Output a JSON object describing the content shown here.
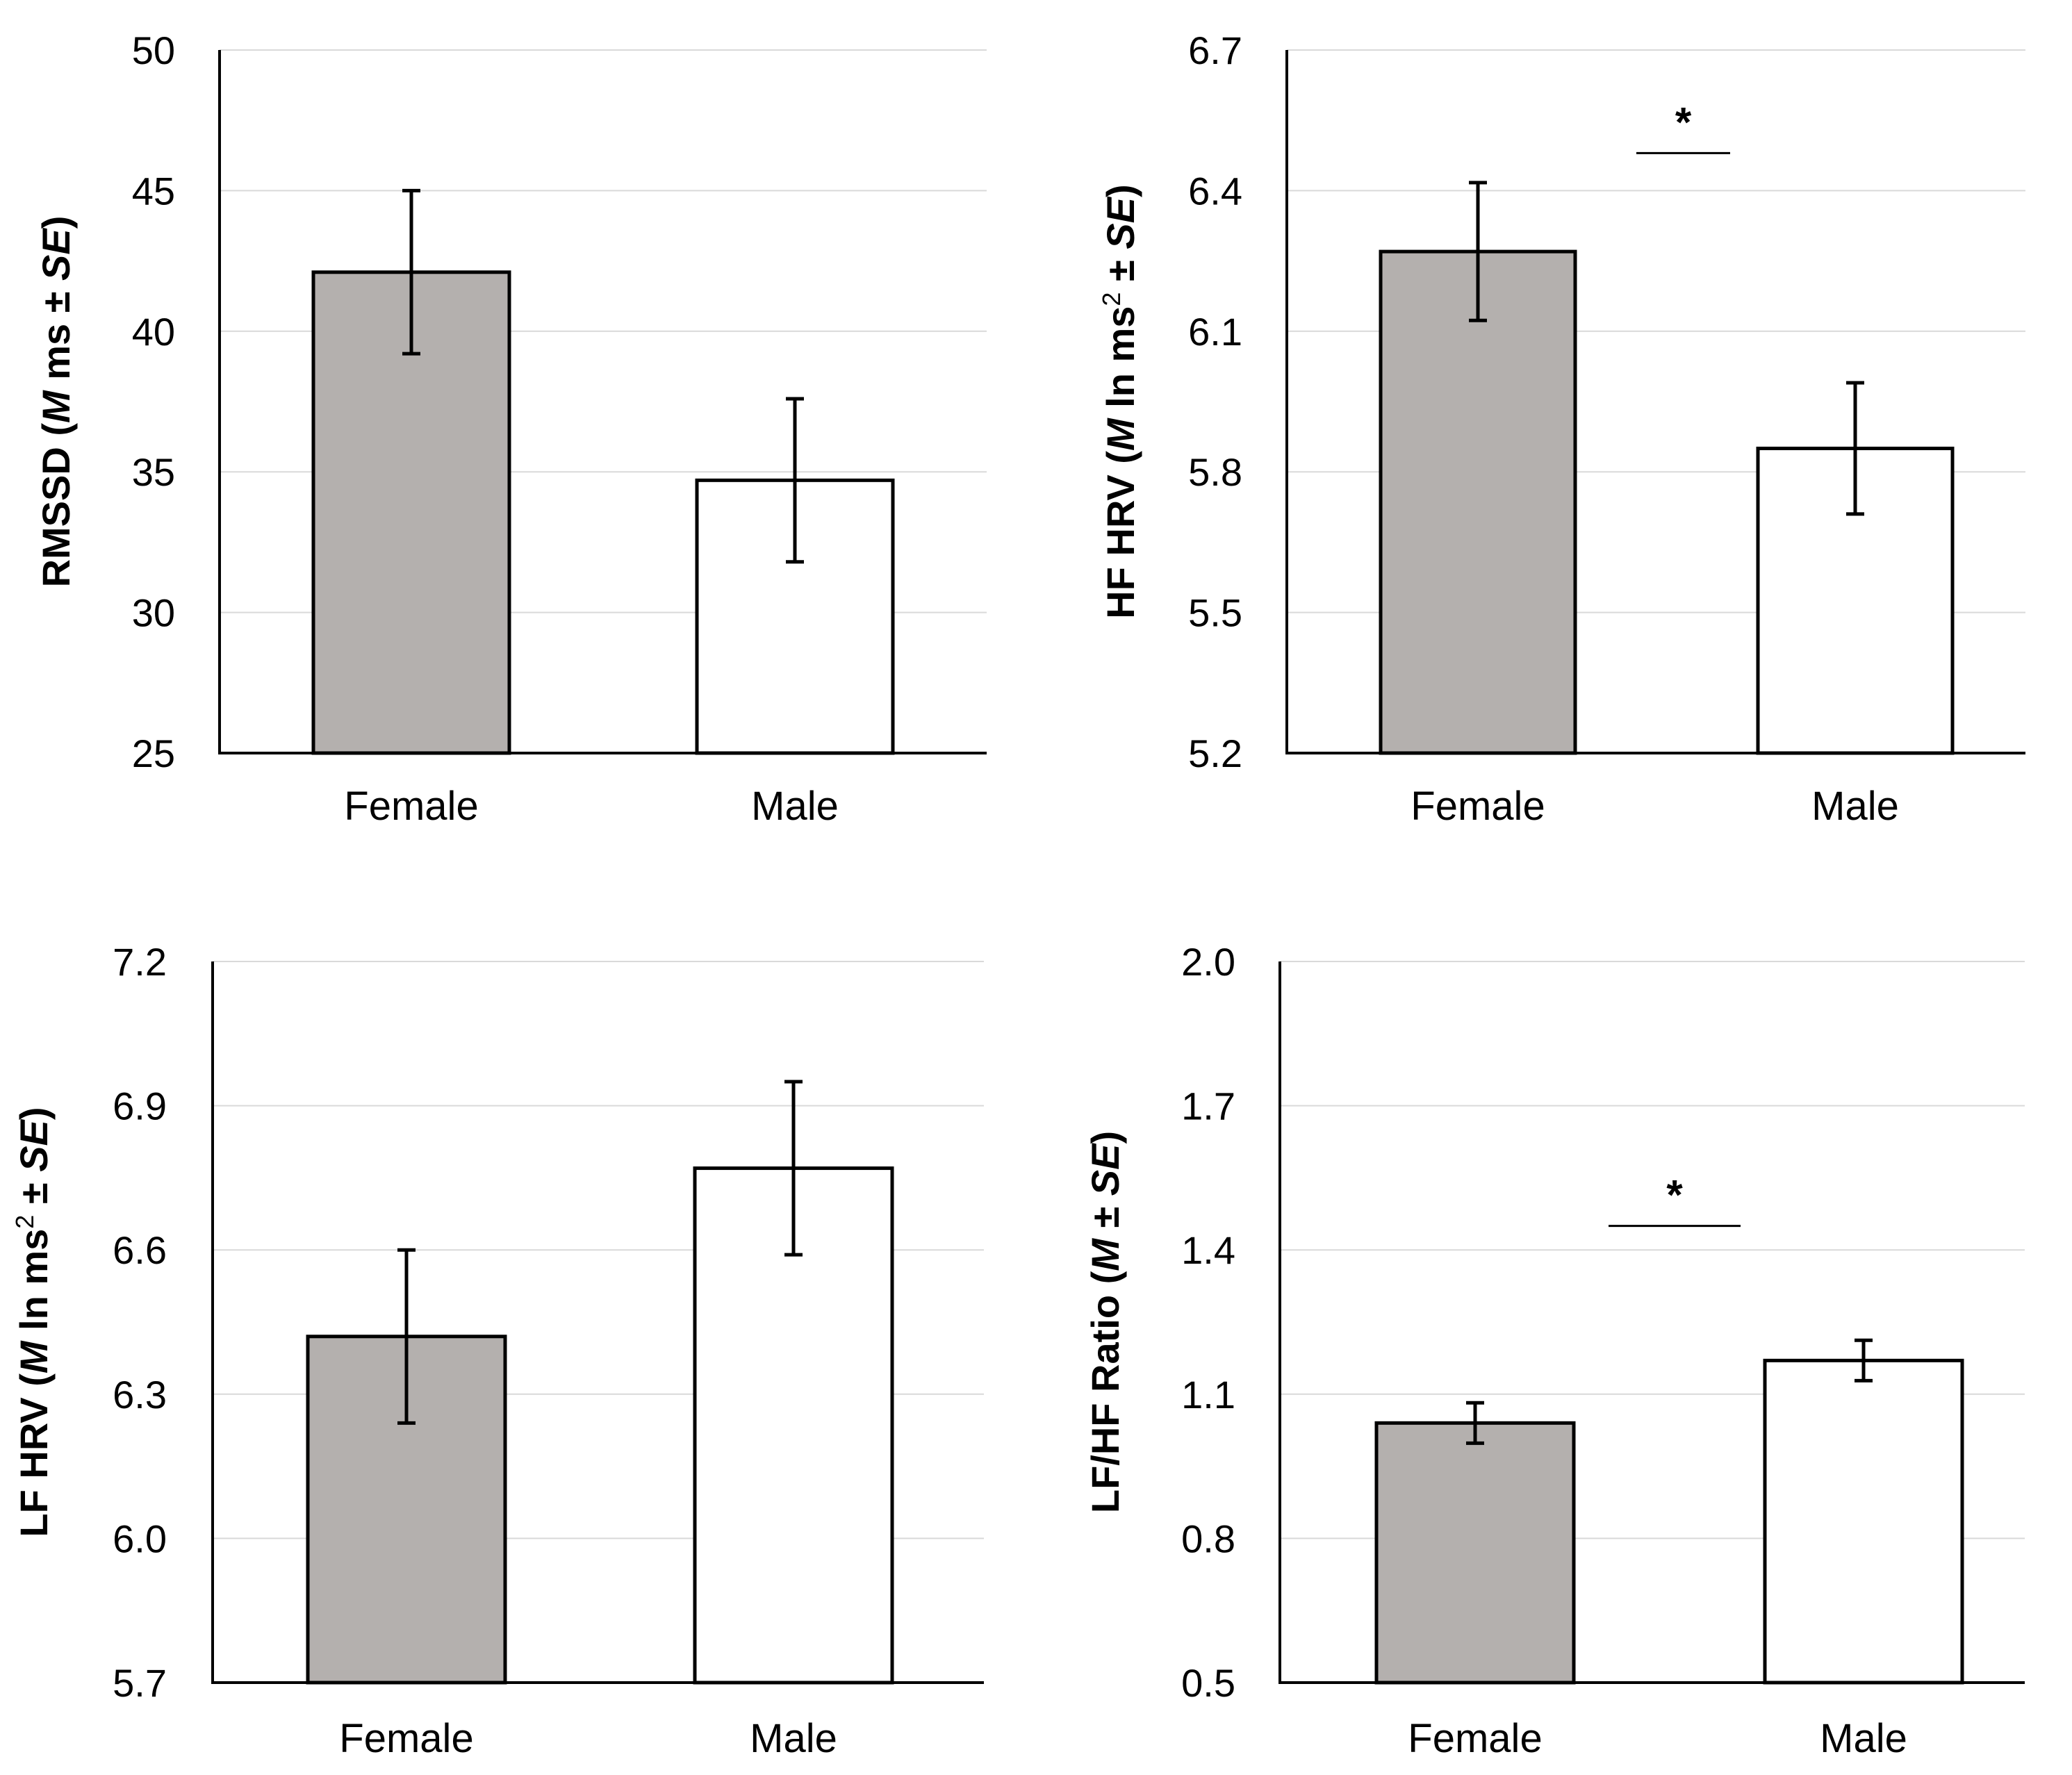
{
  "chart_data": [
    {
      "type": "bar",
      "panel": "top-left",
      "categories": [
        "Female",
        "Male"
      ],
      "values": [
        42.1,
        34.7
      ],
      "errors": [
        2.9,
        2.9
      ],
      "ylim": [
        25,
        50
      ],
      "yticks": [
        "25",
        "30",
        "35",
        "40",
        "45",
        "50"
      ],
      "ylabel_parts": {
        "prefix": "RMSSD (",
        "m": "M",
        "mid": " ms",
        "pm": "±",
        "space": " ",
        "se": "SE",
        "suffix": ")"
      },
      "significance": null,
      "grid": true
    },
    {
      "type": "bar",
      "panel": "top-right",
      "categories": [
        "Female",
        "Male"
      ],
      "values": [
        6.27,
        5.85
      ],
      "errors": [
        0.147,
        0.14
      ],
      "ylim": [
        5.2,
        6.7
      ],
      "yticks": [
        "5.2",
        "5.5",
        "5.8",
        "6.1",
        "6.4",
        "6.7"
      ],
      "ylabel_parts": {
        "prefix": "HF HRV (",
        "m": "M",
        "mid": " ln ms",
        "sup": "2",
        "space": " ",
        "pm": "±",
        "se": "SE",
        "suffix": ")"
      },
      "significance": {
        "label": "*",
        "y": 6.48
      },
      "grid": true
    },
    {
      "type": "bar",
      "panel": "bottom-left",
      "categories": [
        "Female",
        "Male"
      ],
      "values": [
        6.42,
        6.77
      ],
      "errors": [
        0.18,
        0.18
      ],
      "ylim": [
        5.7,
        7.2
      ],
      "yticks": [
        "5.7",
        "6.0",
        "6.3",
        "6.6",
        "6.9",
        "7.2"
      ],
      "ylabel_parts": {
        "prefix": "LF HRV (",
        "m": "M",
        "mid": " ln ms",
        "sup": "2",
        "space": " ",
        "pm": "±",
        "se": "SE",
        "suffix": ")"
      },
      "significance": null,
      "grid": true
    },
    {
      "type": "bar",
      "panel": "bottom-right",
      "categories": [
        "Female",
        "Male"
      ],
      "values": [
        1.04,
        1.17
      ],
      "errors": [
        0.042,
        0.042
      ],
      "ylim": [
        0.5,
        2.0
      ],
      "yticks": [
        "0.5",
        "0.8",
        "1.1",
        "1.4",
        "1.7",
        "2.0"
      ],
      "ylabel_parts": {
        "prefix": "LF/HF Ratio (",
        "m": "M",
        "space": " ",
        "pm": "±",
        "se": "SE",
        "suffix": ")"
      },
      "significance": {
        "label": "*",
        "y": 1.45
      },
      "grid": true
    }
  ],
  "colors": {
    "female_bar": "#b4b0ae",
    "male_bar": "#ffffff",
    "outline": "#000000",
    "grid": "#d9d9d9"
  }
}
